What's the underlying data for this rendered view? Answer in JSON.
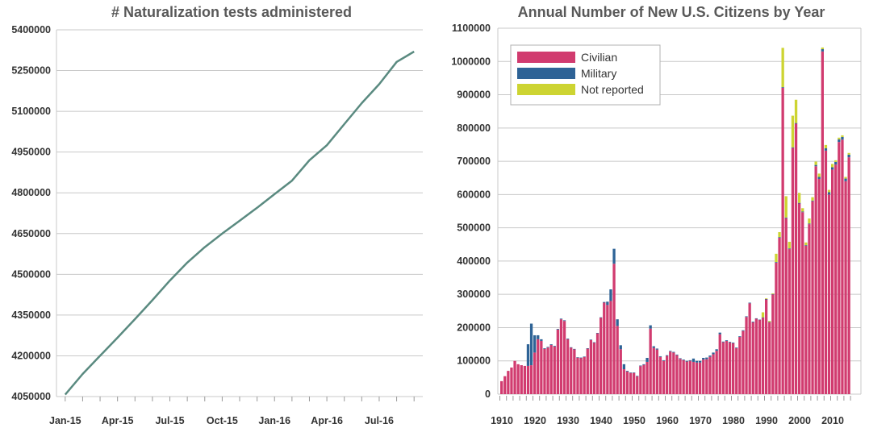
{
  "chart_data": [
    {
      "type": "line",
      "title": "# Naturalization tests administered",
      "xlabel": "",
      "ylabel": "",
      "x_ticks": [
        "Jan-15",
        "Apr-15",
        "Jul-15",
        "Oct-15",
        "Jan-16",
        "Apr-16",
        "Jul-16"
      ],
      "y_ticks": [
        4050000,
        4200000,
        4350000,
        4500000,
        4650000,
        4800000,
        4950000,
        5100000,
        5250000,
        5400000
      ],
      "ylim": [
        4050000,
        5400000
      ],
      "x_months": [
        "2015-01",
        "2015-02",
        "2015-03",
        "2015-04",
        "2015-05",
        "2015-06",
        "2015-07",
        "2015-08",
        "2015-09",
        "2015-10",
        "2015-11",
        "2015-12",
        "2016-01",
        "2016-02",
        "2016-03",
        "2016-04",
        "2016-05",
        "2016-06",
        "2016-07",
        "2016-08",
        "2016-09"
      ],
      "series": [
        {
          "values": [
            4057000,
            4133000,
            4200000,
            4267000,
            4335000,
            4405000,
            4477000,
            4543000,
            4600000,
            4650000,
            4697000,
            4745000,
            4795000,
            4845000,
            4920000,
            4975000,
            5053000,
            5130000,
            5200000,
            5282000,
            5320000
          ]
        }
      ],
      "line_color": "#5a8a80",
      "grid": true
    },
    {
      "type": "bar",
      "stacked": true,
      "title": "Annual Number of New U.S. Citizens by Year",
      "xlabel": "",
      "ylabel": "",
      "x_start": 1910,
      "x_end": 2015,
      "x_ticks": [
        "1910",
        "1920",
        "1930",
        "1940",
        "1950",
        "1960",
        "1970",
        "1980",
        "1990",
        "2000",
        "2010"
      ],
      "y_ticks": [
        0,
        100000,
        200000,
        300000,
        400000,
        500000,
        600000,
        700000,
        800000,
        900000,
        1000000,
        1100000
      ],
      "ylim": [
        0,
        1100000
      ],
      "legend_position": "top-left",
      "series": [
        {
          "name": "Civilian",
          "color": "#d13b6f",
          "values": [
            39000,
            54000,
            70000,
            80000,
            100000,
            90000,
            87000,
            85000,
            85000,
            87000,
            125000,
            165000,
            160000,
            136000,
            140000,
            148000,
            143000,
            194000,
            225000,
            220000,
            165000,
            140000,
            135000,
            110000,
            109000,
            112000,
            137000,
            163000,
            155000,
            183000,
            230000,
            275000,
            268000,
            280000,
            392000,
            205000,
            135000,
            75000,
            68000,
            64000,
            64000,
            54000,
            84000,
            88000,
            97000,
            197000,
            139000,
            134000,
            112000,
            100000,
            115000,
            128000,
            125000,
            117000,
            106000,
            102000,
            98000,
            100000,
            97000,
            95000,
            95000,
            104000,
            105000,
            112000,
            120000,
            130000,
            180000,
            156000,
            160000,
            155000,
            153000,
            138000,
            172000,
            190000,
            232000,
            273000,
            216000,
            227000,
            223000,
            230000,
            285000,
            216000,
            300000,
            395000,
            470000,
            921000,
            529000,
            436000,
            740000,
            813000,
            573000,
            547000,
            446000,
            511000,
            580000,
            685000,
            647000,
            1030000,
            732000,
            600000,
            675000,
            690000,
            758000,
            765000,
            640000,
            712000
          ]
        },
        {
          "name": "Military",
          "color": "#2e6396",
          "values": [
            0,
            0,
            0,
            0,
            0,
            0,
            0,
            0,
            65000,
            125000,
            52000,
            12000,
            5000,
            2000,
            2000,
            2000,
            2000,
            2000,
            2000,
            2000,
            2000,
            1000,
            1000,
            1000,
            1000,
            1000,
            1000,
            1000,
            1000,
            1000,
            1000,
            2000,
            10000,
            35000,
            45000,
            20000,
            12000,
            15000,
            2000,
            1000,
            1000,
            1000,
            2000,
            2000,
            12000,
            10000,
            5000,
            3000,
            2000,
            2000,
            2000,
            2000,
            2000,
            2000,
            2000,
            2000,
            2000,
            2000,
            10000,
            5000,
            5000,
            5000,
            5000,
            4000,
            5000,
            5000,
            5000,
            2000,
            2000,
            2000,
            2000,
            2000,
            2000,
            2000,
            2000,
            2000,
            2000,
            1000,
            1000,
            1000,
            1000,
            1000,
            1000,
            2000,
            2000,
            2000,
            2000,
            2000,
            2000,
            2000,
            2000,
            2000,
            2000,
            2000,
            2000,
            4000,
            6000,
            7000,
            7000,
            7000,
            7000,
            8000,
            8000,
            8000,
            8000,
            8000
          ]
        },
        {
          "name": "Not reported",
          "color": "#cdd432",
          "values": [
            0,
            0,
            0,
            0,
            0,
            0,
            0,
            0,
            0,
            0,
            0,
            0,
            0,
            0,
            0,
            0,
            0,
            0,
            0,
            0,
            0,
            0,
            0,
            0,
            0,
            0,
            0,
            0,
            0,
            0,
            0,
            0,
            0,
            0,
            0,
            0,
            0,
            0,
            0,
            0,
            0,
            0,
            0,
            0,
            0,
            0,
            0,
            0,
            0,
            0,
            0,
            0,
            0,
            0,
            0,
            0,
            0,
            0,
            0,
            0,
            0,
            0,
            0,
            0,
            0,
            0,
            0,
            0,
            0,
            0,
            0,
            0,
            0,
            0,
            0,
            0,
            0,
            0,
            0,
            15000,
            2000,
            3000,
            2000,
            25000,
            15000,
            118000,
            64000,
            20000,
            95000,
            70000,
            30000,
            10000,
            8000,
            15000,
            10000,
            10000,
            10000,
            5000,
            10000,
            7000,
            10000,
            5000,
            5000,
            5000,
            5000,
            5000
          ]
        }
      ],
      "grid": true
    }
  ]
}
